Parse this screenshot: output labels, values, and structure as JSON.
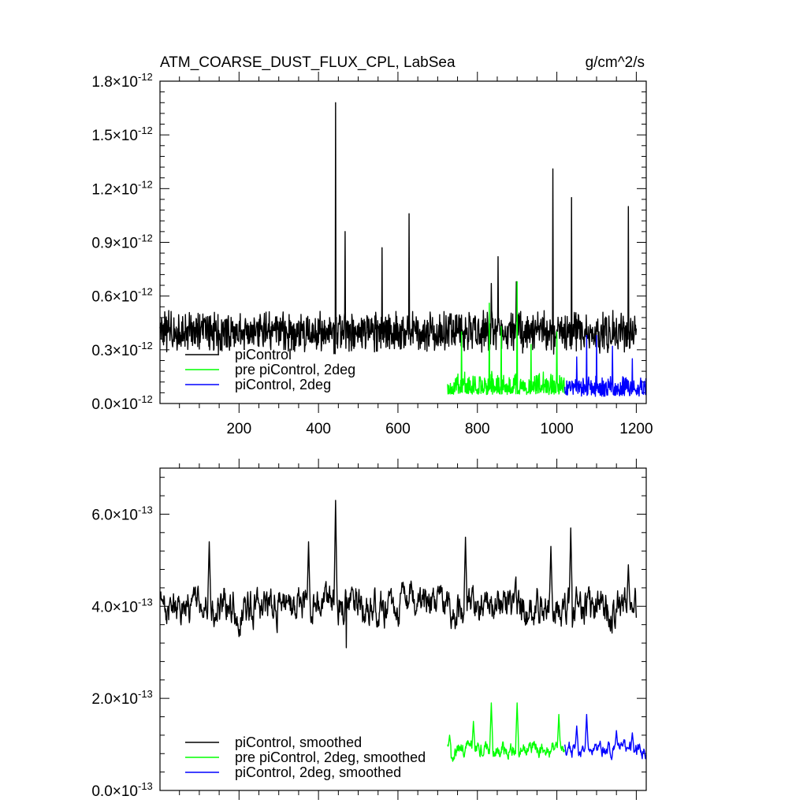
{
  "chart_data": [
    {
      "type": "line",
      "title": "ATM_COARSE_DUST_FLUX_CPL, LabSea",
      "units": "g/cm^2/s",
      "xlim": [
        1,
        1225
      ],
      "ylim": [
        0.0,
        1.8e-12
      ],
      "x_ticks": [
        200,
        400,
        600,
        800,
        1000,
        1200
      ],
      "y_ticks": [
        {
          "mantissa": "0.0",
          "exponent": "-12"
        },
        {
          "mantissa": "0.3",
          "exponent": "-12"
        },
        {
          "mantissa": "0.6",
          "exponent": "-12"
        },
        {
          "mantissa": "0.9",
          "exponent": "-12"
        },
        {
          "mantissa": "1.2",
          "exponent": "-12"
        },
        {
          "mantissa": "1.5",
          "exponent": "-12"
        },
        {
          "mantissa": "1.8",
          "exponent": "-12"
        }
      ],
      "times_sign": "×10",
      "legend_position": "bottom-left",
      "series": [
        {
          "name": "piControl",
          "color": "#000000",
          "x_range": [
            1,
            1200
          ],
          "baseline": 4e-13,
          "variation": 8e-14,
          "min_value": 2.4e-13,
          "peaks": [
            [
              443,
              1.68e-12
            ],
            [
              467,
              9.6e-13
            ],
            [
              628,
              1.06e-12
            ],
            [
              560,
              8.7e-13
            ],
            [
              852,
              8.2e-13
            ],
            [
              990,
              1.31e-12
            ],
            [
              1037,
              1.15e-12
            ],
            [
              1180,
              1.1e-12
            ],
            [
              898,
              6.8e-13
            ],
            [
              835,
              6.7e-13
            ]
          ]
        },
        {
          "name": "pre piControl, 2deg",
          "color": "#00ff00",
          "x_range": [
            725,
            1020
          ],
          "baseline": 9e-14,
          "variation": 6e-14,
          "min_value": 5e-14,
          "peaks": [
            [
              900,
              6.8e-13
            ],
            [
              830,
              5.6e-13
            ],
            [
              860,
              4.3e-13
            ],
            [
              760,
              4e-13
            ],
            [
              1000,
              4e-13
            ],
            [
              935,
              3.3e-13
            ]
          ]
        },
        {
          "name": "piControl, 2deg",
          "color": "#0000ff",
          "x_range": [
            1020,
            1225
          ],
          "baseline": 8e-14,
          "variation": 5e-14,
          "min_value": 4e-14,
          "peaks": [
            [
              1075,
              3.8e-13
            ],
            [
              1100,
              3.8e-13
            ],
            [
              1140,
              3.2e-13
            ],
            [
              1050,
              2.6e-13
            ],
            [
              1190,
              2.5e-13
            ]
          ]
        }
      ]
    },
    {
      "type": "line",
      "xlim": [
        1,
        1225
      ],
      "ylim": [
        0.0,
        7e-13
      ],
      "x_ticks": [
        200,
        400,
        600,
        800,
        1000,
        1200
      ],
      "y_ticks": [
        {
          "mantissa": "0.0",
          "exponent": "-13"
        },
        {
          "mantissa": "2.0",
          "exponent": "-13"
        },
        {
          "mantissa": "4.0",
          "exponent": "-13"
        },
        {
          "mantissa": "6.0",
          "exponent": "-13"
        }
      ],
      "times_sign": "×10",
      "legend_position": "bottom-left",
      "series": [
        {
          "name": "piControl, smoothed",
          "color": "#000000",
          "x_range": [
            1,
            1200
          ],
          "baseline": 4e-13,
          "variation": 4e-14,
          "min_value": 3.1e-13,
          "peaks": [
            [
              443,
              6.3e-13
            ],
            [
              125,
              5.4e-13
            ],
            [
              375,
              5.4e-13
            ],
            [
              770,
              5.5e-13
            ],
            [
              1035,
              5.7e-13
            ],
            [
              985,
              5.3e-13
            ],
            [
              1180,
              4.9e-13
            ],
            [
              470,
              3.1e-13
            ]
          ]
        },
        {
          "name": "pre piControl, 2deg, smoothed",
          "color": "#00ff00",
          "x_range": [
            725,
            1020
          ],
          "baseline": 9e-14,
          "variation": 1.8e-14,
          "min_value": 6e-14,
          "peaks": [
            [
              835,
              1.9e-13
            ],
            [
              900,
              1.9e-13
            ],
            [
              790,
              1.5e-13
            ],
            [
              1005,
              1.65e-13
            ],
            [
              730,
              1.2e-13
            ]
          ]
        },
        {
          "name": "piControl, 2deg, smoothed",
          "color": "#0000ff",
          "x_range": [
            1020,
            1225
          ],
          "baseline": 9e-14,
          "variation": 1.6e-14,
          "min_value": 5e-14,
          "peaks": [
            [
              1075,
              1.65e-13
            ],
            [
              1050,
              1.4e-13
            ],
            [
              1150,
              1.3e-13
            ],
            [
              1190,
              1.25e-13
            ]
          ]
        }
      ]
    }
  ]
}
